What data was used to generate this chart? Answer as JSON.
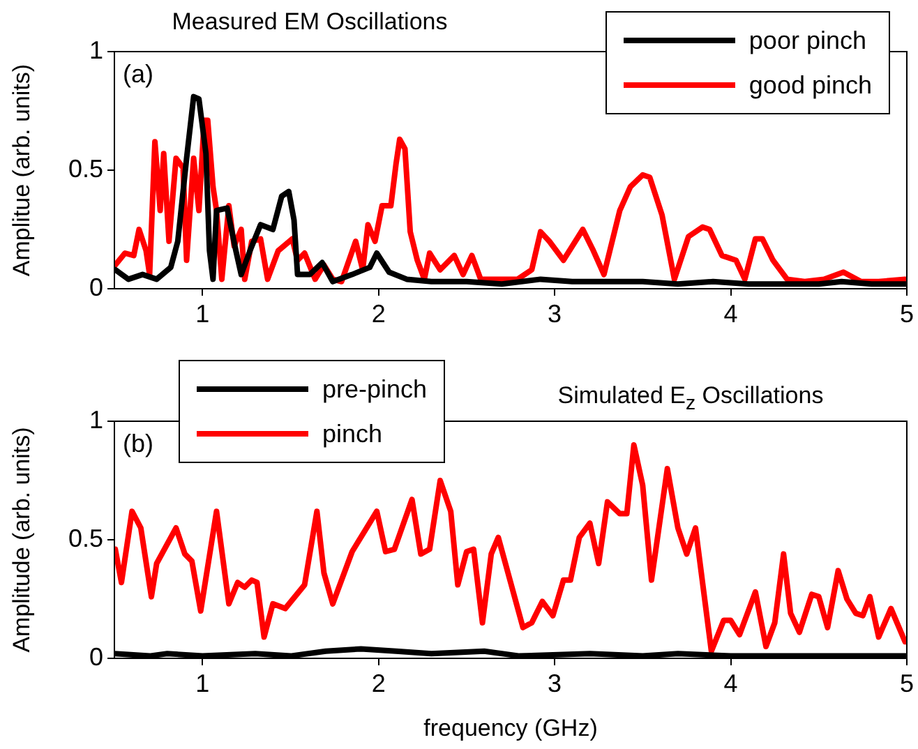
{
  "chart_data": [
    {
      "type": "line",
      "title": "Measured EM Oscillations",
      "ylabel": "Amplitue (arb. units)",
      "annotations": [
        "(a)"
      ],
      "xlim": [
        0.5,
        5
      ],
      "xticks": [
        1,
        2,
        3,
        4,
        5
      ],
      "ylim": [
        0,
        1
      ],
      "yticks": [
        0,
        0.5,
        1
      ],
      "legend": "top right",
      "marker": "none",
      "series": [
        {
          "name": "poor pinch",
          "color": "#000000",
          "x": [
            0.505,
            0.58,
            0.66,
            0.74,
            0.82,
            0.86,
            0.91,
            0.95,
            0.98,
            1.02,
            1.04,
            1.06,
            1.08,
            1.14,
            1.19,
            1.22,
            1.27,
            1.33,
            1.4,
            1.45,
            1.49,
            1.52,
            1.54,
            1.61,
            1.68,
            1.74,
            1.85,
            1.95,
            1.99,
            2.06,
            2.16,
            2.3,
            2.5,
            2.7,
            2.92,
            3.1,
            3.3,
            3.5,
            3.7,
            3.9,
            4.1,
            4.3,
            4.5,
            4.63,
            4.8,
            5.0
          ],
          "values": [
            0.08,
            0.04,
            0.06,
            0.04,
            0.09,
            0.2,
            0.55,
            0.81,
            0.8,
            0.57,
            0.16,
            0.04,
            0.33,
            0.34,
            0.16,
            0.06,
            0.16,
            0.27,
            0.25,
            0.39,
            0.41,
            0.29,
            0.06,
            0.06,
            0.11,
            0.03,
            0.06,
            0.09,
            0.15,
            0.07,
            0.04,
            0.03,
            0.03,
            0.02,
            0.04,
            0.03,
            0.03,
            0.03,
            0.02,
            0.03,
            0.02,
            0.02,
            0.02,
            0.03,
            0.02,
            0.02
          ]
        },
        {
          "name": "good pinch",
          "color": "#ff0000",
          "x": [
            0.505,
            0.56,
            0.61,
            0.64,
            0.68,
            0.7,
            0.73,
            0.76,
            0.78,
            0.81,
            0.85,
            0.89,
            0.91,
            0.95,
            0.98,
            1.01,
            1.03,
            1.06,
            1.08,
            1.11,
            1.15,
            1.18,
            1.22,
            1.24,
            1.28,
            1.33,
            1.37,
            1.43,
            1.51,
            1.54,
            1.58,
            1.64,
            1.69,
            1.74,
            1.79,
            1.87,
            1.91,
            1.94,
            1.98,
            2.02,
            2.07,
            2.1,
            2.12,
            2.15,
            2.18,
            2.22,
            2.26,
            2.29,
            2.35,
            2.43,
            2.48,
            2.53,
            2.58,
            2.68,
            2.79,
            2.87,
            2.92,
            2.97,
            3.05,
            3.16,
            3.22,
            3.28,
            3.37,
            3.43,
            3.5,
            3.54,
            3.61,
            3.68,
            3.76,
            3.84,
            3.88,
            3.95,
            4.03,
            4.08,
            4.14,
            4.18,
            4.24,
            4.32,
            4.42,
            4.53,
            4.64,
            4.74,
            4.84,
            4.99
          ],
          "values": [
            0.1,
            0.15,
            0.14,
            0.25,
            0.16,
            0.06,
            0.62,
            0.33,
            0.57,
            0.2,
            0.55,
            0.51,
            0.12,
            0.55,
            0.33,
            0.71,
            0.71,
            0.43,
            0.33,
            0.04,
            0.35,
            0.18,
            0.25,
            0.04,
            0.2,
            0.21,
            0.04,
            0.16,
            0.21,
            0.12,
            0.15,
            0.04,
            0.1,
            0.04,
            0.03,
            0.2,
            0.08,
            0.27,
            0.2,
            0.35,
            0.35,
            0.53,
            0.63,
            0.59,
            0.24,
            0.12,
            0.04,
            0.15,
            0.08,
            0.14,
            0.06,
            0.14,
            0.04,
            0.04,
            0.04,
            0.08,
            0.24,
            0.2,
            0.12,
            0.25,
            0.16,
            0.06,
            0.33,
            0.43,
            0.48,
            0.47,
            0.31,
            0.04,
            0.22,
            0.26,
            0.25,
            0.14,
            0.12,
            0.04,
            0.21,
            0.21,
            0.12,
            0.04,
            0.03,
            0.04,
            0.07,
            0.03,
            0.03,
            0.04
          ]
        }
      ]
    },
    {
      "type": "line",
      "title": "Simulated E$_{z}$ Oscillations",
      "xlabel": "frequency (GHz)",
      "ylabel": "Amplitude (arb. units)",
      "annotations": [
        "(b)"
      ],
      "xlim": [
        0.5,
        5
      ],
      "xticks": [
        1,
        2,
        3,
        4,
        5
      ],
      "ylim": [
        0,
        1
      ],
      "yticks": [
        0,
        0.5,
        1
      ],
      "legend": "top left",
      "marker": "none",
      "series": [
        {
          "name": "pre-pinch",
          "color": "#000000",
          "x": [
            0.5,
            0.7,
            0.8,
            1.0,
            1.3,
            1.5,
            1.7,
            1.9,
            2.1,
            2.3,
            2.6,
            2.8,
            3.2,
            3.5,
            3.7,
            4.0,
            4.3,
            4.6,
            5.0
          ],
          "values": [
            0.02,
            0.01,
            0.02,
            0.01,
            0.02,
            0.01,
            0.03,
            0.04,
            0.03,
            0.02,
            0.03,
            0.01,
            0.02,
            0.01,
            0.02,
            0.01,
            0.01,
            0.01,
            0.01
          ]
        },
        {
          "name": "pinch",
          "color": "#ff0000",
          "x": [
            0.505,
            0.54,
            0.6,
            0.65,
            0.71,
            0.74,
            0.85,
            0.9,
            0.94,
            0.99,
            1.08,
            1.15,
            1.2,
            1.24,
            1.28,
            1.31,
            1.35,
            1.4,
            1.47,
            1.58,
            1.65,
            1.69,
            1.74,
            1.85,
            1.99,
            2.04,
            2.09,
            2.19,
            2.24,
            2.29,
            2.35,
            2.41,
            2.45,
            2.5,
            2.54,
            2.59,
            2.64,
            2.68,
            2.82,
            2.87,
            2.93,
            2.99,
            3.05,
            3.09,
            3.14,
            3.2,
            3.25,
            3.3,
            3.37,
            3.41,
            3.45,
            3.5,
            3.55,
            3.64,
            3.7,
            3.75,
            3.8,
            3.89,
            3.96,
            4.0,
            4.05,
            4.14,
            4.2,
            4.25,
            4.3,
            4.34,
            4.39,
            4.46,
            4.5,
            4.55,
            4.61,
            4.66,
            4.71,
            4.75,
            4.79,
            4.84,
            4.91,
            4.99
          ],
          "values": [
            0.46,
            0.32,
            0.62,
            0.55,
            0.26,
            0.4,
            0.55,
            0.44,
            0.41,
            0.2,
            0.62,
            0.23,
            0.32,
            0.3,
            0.33,
            0.32,
            0.09,
            0.23,
            0.21,
            0.31,
            0.62,
            0.36,
            0.23,
            0.45,
            0.62,
            0.45,
            0.46,
            0.67,
            0.44,
            0.46,
            0.75,
            0.62,
            0.31,
            0.45,
            0.46,
            0.15,
            0.44,
            0.51,
            0.13,
            0.15,
            0.24,
            0.18,
            0.33,
            0.33,
            0.51,
            0.57,
            0.4,
            0.66,
            0.61,
            0.61,
            0.9,
            0.73,
            0.33,
            0.8,
            0.55,
            0.44,
            0.55,
            0.03,
            0.16,
            0.16,
            0.1,
            0.28,
            0.05,
            0.15,
            0.44,
            0.19,
            0.11,
            0.27,
            0.26,
            0.13,
            0.37,
            0.25,
            0.19,
            0.18,
            0.26,
            0.09,
            0.21,
            0.07
          ]
        }
      ]
    }
  ]
}
